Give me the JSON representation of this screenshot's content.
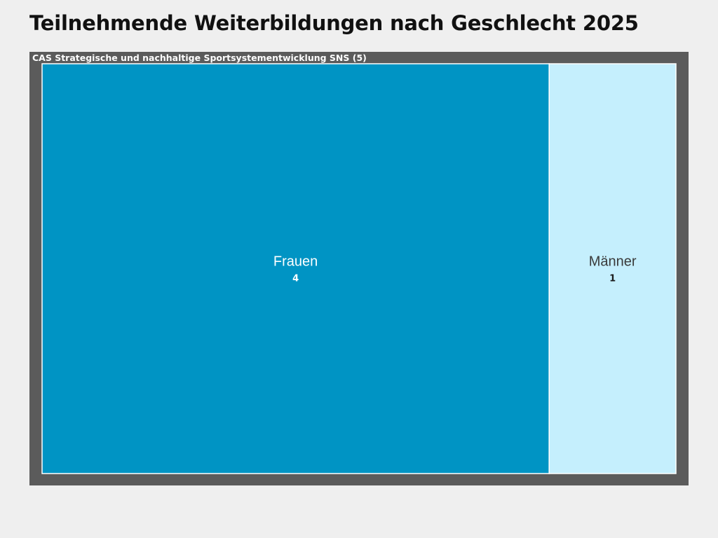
{
  "page": {
    "title": "Teilnehmende Weiterbildungen nach Geschlecht 2025"
  },
  "chart_data": {
    "type": "treemap",
    "group": {
      "label": "CAS Strategische und nachhaltige Sportsystementwicklung SNS (5)",
      "total": 5
    },
    "categories": [
      "Frauen",
      "Männer"
    ],
    "values": [
      4,
      1
    ],
    "colors": {
      "frame": "#5b5b5b",
      "tile_border": "#ffffff",
      "tiles": [
        "#0094c4",
        "#c5effd"
      ],
      "tile_label": [
        "#ffffff",
        "#3a3a3a"
      ],
      "tile_value": [
        "#ffffff",
        "#1a1a1a"
      ],
      "group_label": "#ffffff"
    }
  }
}
